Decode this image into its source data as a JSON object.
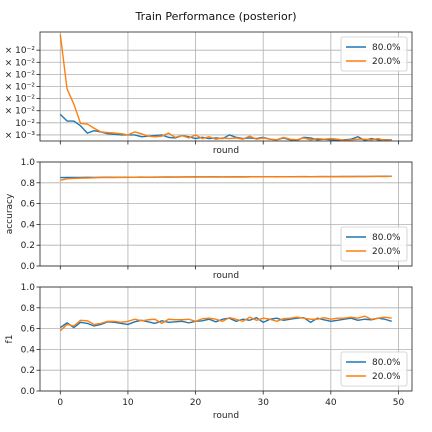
{
  "title": "Train Performance (posterior)",
  "colors": {
    "s1": "#1f77b4",
    "s2": "#ff7f0e"
  },
  "chart_data": [
    {
      "type": "line",
      "xlabel": "round",
      "ylabel": "",
      "xlim": [
        -3,
        52
      ],
      "ylim": [
        0.0015,
        0.0105
      ],
      "xticks": [],
      "yticks": [
        0.002,
        0.003,
        0.004,
        0.005,
        0.006,
        0.007,
        0.008,
        0.009
      ],
      "yticklabels": [
        "× 10⁻³",
        "10⁻²",
        "× 10⁻²",
        "× 10⁻²",
        "× 10⁻²",
        "× 10⁻²",
        "× 10⁻²",
        "× 10⁻²"
      ],
      "legend": "upper right",
      "grid": true,
      "series": [
        {
          "name": "80.0%",
          "color": "#1f77b4",
          "values": [
            0.0037,
            0.00315,
            0.00315,
            0.00275,
            0.00215,
            0.00235,
            0.00225,
            0.0021,
            0.00205,
            0.002,
            0.002,
            0.002,
            0.00185,
            0.0019,
            0.00195,
            0.002,
            0.0018,
            0.00175,
            0.00195,
            0.00185,
            0.0017,
            0.0018,
            0.0017,
            0.00175,
            0.0017,
            0.002,
            0.0018,
            0.0017,
            0.00175,
            0.0017,
            0.0018,
            0.00165,
            0.0016,
            0.00175,
            0.0016,
            0.00155,
            0.0018,
            0.00175,
            0.0016,
            0.00165,
            0.0016,
            0.00155,
            0.0016,
            0.00165,
            0.00185,
            0.00155,
            0.0017,
            0.0016,
            0.0016,
            0.0016
          ]
        },
        {
          "name": "20.0%",
          "color": "#ff7f0e",
          "values": [
            0.0103,
            0.0058,
            0.00455,
            0.00295,
            0.0029,
            0.00255,
            0.00225,
            0.0022,
            0.00215,
            0.0021,
            0.002,
            0.00225,
            0.0021,
            0.0019,
            0.00185,
            0.0019,
            0.00215,
            0.0018,
            0.00195,
            0.00175,
            0.002,
            0.0017,
            0.00185,
            0.00165,
            0.00175,
            0.0017,
            0.00175,
            0.00165,
            0.0019,
            0.00165,
            0.00175,
            0.00165,
            0.0016,
            0.0018,
            0.00165,
            0.0016,
            0.00175,
            0.0016,
            0.0017,
            0.00165,
            0.0017,
            0.00165,
            0.00155,
            0.0016,
            0.00165,
            0.00165,
            0.0016,
            0.0017,
            0.00155,
            0.0016
          ]
        }
      ]
    },
    {
      "type": "line",
      "xlabel": "round",
      "ylabel": "accuracy",
      "xlim": [
        -3,
        52
      ],
      "ylim": [
        0.0,
        1.0
      ],
      "xticks": [],
      "yticks": [
        0.0,
        0.2,
        0.4,
        0.6,
        0.8,
        1.0
      ],
      "yticklabels": [
        "0.0",
        "0.2",
        "0.4",
        "0.6",
        "0.8",
        "1.0"
      ],
      "legend": "lower right",
      "grid": true,
      "series": [
        {
          "name": "80.0%",
          "color": "#1f77b4",
          "values": [
            0.85,
            0.852,
            0.851,
            0.852,
            0.853,
            0.852,
            0.853,
            0.854,
            0.853,
            0.854,
            0.853,
            0.854,
            0.855,
            0.854,
            0.855,
            0.855,
            0.856,
            0.855,
            0.856,
            0.856,
            0.857,
            0.856,
            0.857,
            0.857,
            0.856,
            0.857,
            0.858,
            0.857,
            0.858,
            0.858,
            0.858,
            0.859,
            0.858,
            0.859,
            0.859,
            0.859,
            0.86,
            0.859,
            0.86,
            0.86,
            0.86,
            0.86,
            0.861,
            0.86,
            0.861,
            0.861,
            0.861,
            0.862,
            0.862,
            0.862
          ]
        },
        {
          "name": "20.0%",
          "color": "#ff7f0e",
          "values": [
            0.825,
            0.838,
            0.842,
            0.845,
            0.846,
            0.848,
            0.85,
            0.852,
            0.851,
            0.853,
            0.852,
            0.854,
            0.853,
            0.855,
            0.853,
            0.856,
            0.854,
            0.856,
            0.855,
            0.857,
            0.855,
            0.858,
            0.856,
            0.857,
            0.856,
            0.858,
            0.857,
            0.858,
            0.857,
            0.859,
            0.858,
            0.859,
            0.857,
            0.859,
            0.858,
            0.86,
            0.858,
            0.859,
            0.859,
            0.86,
            0.859,
            0.86,
            0.859,
            0.861,
            0.86,
            0.86,
            0.861,
            0.861,
            0.86,
            0.862
          ]
        }
      ]
    },
    {
      "type": "line",
      "xlabel": "round",
      "ylabel": "f1",
      "xlim": [
        -3,
        52
      ],
      "ylim": [
        0.0,
        1.0
      ],
      "xticks": [
        0,
        10,
        20,
        30,
        40,
        50
      ],
      "yticks": [
        0.0,
        0.2,
        0.4,
        0.6,
        0.8,
        1.0
      ],
      "yticklabels": [
        "0.0",
        "0.2",
        "0.4",
        "0.6",
        "0.8",
        "1.0"
      ],
      "legend": "lower right",
      "grid": true,
      "series": [
        {
          "name": "80.0%",
          "color": "#1f77b4",
          "values": [
            0.61,
            0.655,
            0.61,
            0.66,
            0.65,
            0.625,
            0.64,
            0.665,
            0.66,
            0.65,
            0.64,
            0.665,
            0.68,
            0.665,
            0.65,
            0.675,
            0.66,
            0.665,
            0.67,
            0.655,
            0.67,
            0.675,
            0.69,
            0.665,
            0.69,
            0.7,
            0.67,
            0.69,
            0.68,
            0.705,
            0.66,
            0.69,
            0.7,
            0.68,
            0.69,
            0.7,
            0.705,
            0.66,
            0.7,
            0.685,
            0.67,
            0.68,
            0.69,
            0.7,
            0.68,
            0.69,
            0.685,
            0.7,
            0.69,
            0.67
          ]
        },
        {
          "name": "20.0%",
          "color": "#ff7f0e",
          "values": [
            0.58,
            0.64,
            0.625,
            0.68,
            0.675,
            0.64,
            0.65,
            0.67,
            0.67,
            0.66,
            0.67,
            0.69,
            0.675,
            0.685,
            0.69,
            0.65,
            0.69,
            0.685,
            0.685,
            0.69,
            0.67,
            0.695,
            0.7,
            0.69,
            0.67,
            0.705,
            0.69,
            0.67,
            0.71,
            0.68,
            0.7,
            0.69,
            0.67,
            0.695,
            0.7,
            0.71,
            0.7,
            0.69,
            0.69,
            0.705,
            0.69,
            0.7,
            0.7,
            0.71,
            0.7,
            0.72,
            0.69,
            0.7,
            0.71,
            0.7
          ]
        }
      ]
    }
  ]
}
